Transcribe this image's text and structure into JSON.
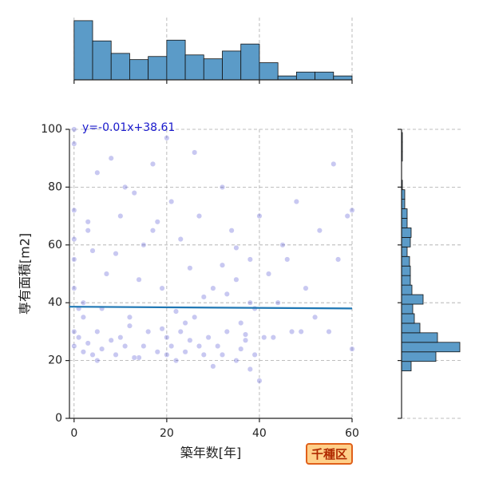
{
  "chart_data": [
    {
      "type": "scatter",
      "xlabel": "築年数[年]",
      "ylabel": "専有面積[m2]",
      "annotation": "y=-0.01x+38.61",
      "badge": "千種区",
      "xlim": [
        -1,
        60
      ],
      "ylim": [
        0,
        100
      ],
      "xticks": [
        0,
        20,
        40,
        60
      ],
      "yticks": [
        0,
        20,
        40,
        60,
        80,
        100
      ],
      "grid": true,
      "color": "#3a3acd",
      "x": [
        0,
        0,
        0,
        0,
        0,
        0,
        0,
        0,
        1,
        2,
        2,
        3,
        3,
        4,
        5,
        5,
        6,
        7,
        8,
        9,
        10,
        10,
        11,
        12,
        13,
        14,
        15,
        15,
        16,
        17,
        18,
        19,
        20,
        20,
        20,
        21,
        21,
        22,
        23,
        23,
        24,
        25,
        25,
        26,
        27,
        28,
        29,
        30,
        30,
        31,
        32,
        32,
        33,
        34,
        35,
        35,
        36,
        37,
        38,
        38,
        39,
        39,
        40,
        40,
        41,
        42,
        44,
        45,
        47,
        48,
        50,
        52,
        53,
        55,
        57,
        59,
        60,
        2,
        4,
        6,
        8,
        12,
        14,
        18,
        22,
        24,
        28,
        32,
        36,
        38,
        3,
        9,
        13,
        17,
        26,
        33,
        37,
        43,
        46,
        49,
        56,
        60,
        1,
        5,
        11,
        19,
        27,
        35
      ],
      "values": [
        25,
        30,
        45,
        62,
        72,
        95,
        100,
        55,
        28,
        23,
        40,
        26,
        65,
        22,
        30,
        85,
        24,
        50,
        27,
        22,
        28,
        70,
        25,
        35,
        78,
        21,
        25,
        60,
        30,
        88,
        23,
        45,
        22,
        28,
        97,
        25,
        75,
        20,
        30,
        62,
        23,
        27,
        52,
        35,
        70,
        22,
        28,
        18,
        45,
        25,
        22,
        80,
        30,
        65,
        20,
        48,
        24,
        27,
        17,
        55,
        22,
        38,
        13,
        70,
        28,
        50,
        40,
        60,
        30,
        75,
        45,
        35,
        65,
        30,
        55,
        70,
        24,
        35,
        58,
        38,
        90,
        32,
        48,
        68,
        37,
        33,
        42,
        53,
        33,
        40,
        68,
        57,
        21,
        65,
        92,
        43,
        29,
        28,
        55,
        30,
        88,
        72,
        38,
        20,
        80,
        31,
        25,
        59
      ],
      "regression": {
        "x": [
          -1,
          60
        ],
        "values": [
          38.62,
          38.01
        ],
        "color": "#1f77b4"
      }
    },
    {
      "type": "histogram",
      "orientation": "vertical",
      "color": "#5b9bc8",
      "bins": [
        0,
        4,
        8,
        12,
        16,
        20,
        24,
        28,
        32,
        36,
        40,
        44,
        48,
        52,
        56,
        60
      ],
      "values": [
        152,
        100,
        68,
        52,
        60,
        102,
        64,
        54,
        74,
        92,
        44,
        10,
        20,
        20,
        10
      ],
      "xlim": [
        -1,
        60
      ],
      "xticks": [
        0,
        20,
        40,
        60
      ],
      "ylim": [
        0,
        160
      ],
      "grid": true
    },
    {
      "type": "histogram",
      "orientation": "horizontal",
      "color": "#5b9bc8",
      "bins": [
        16.4,
        19.7,
        23,
        26.3,
        29.6,
        32.9,
        36.2,
        39.5,
        42.8,
        46.1,
        49.4,
        52.7,
        56,
        59.3,
        62.6,
        65.9,
        69.2,
        72.5,
        75.8,
        79.1,
        82.4,
        85.7,
        89,
        92.3,
        95.6,
        98.9
      ],
      "values": [
        24,
        86,
        146,
        90,
        46,
        32,
        28,
        54,
        26,
        22,
        22,
        20,
        14,
        22,
        24,
        14,
        14,
        8,
        8,
        2,
        0,
        0,
        2,
        2,
        2
      ],
      "ylim": [
        0,
        100
      ],
      "yticks": [
        0,
        20,
        40,
        60,
        80,
        100
      ],
      "xlim": [
        0,
        150
      ],
      "grid": true
    }
  ]
}
